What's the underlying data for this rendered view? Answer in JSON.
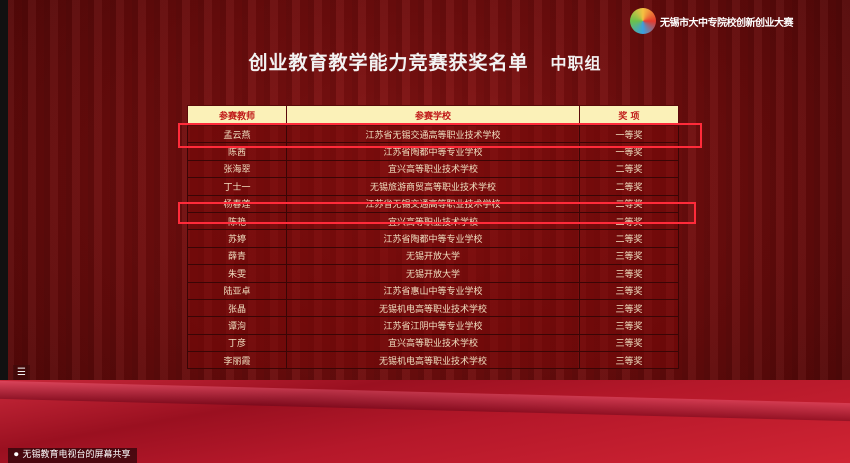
{
  "logo": {
    "text": "无锡市大中专院校创新创业大赛"
  },
  "title": {
    "main": "创业教育教学能力竞赛获奖名单",
    "group": "中职组"
  },
  "table": {
    "headers": [
      "参赛教师",
      "参赛学校",
      "奖 项"
    ],
    "rows": [
      [
        "孟云燕",
        "江苏省无锡交通高等职业技术学校",
        "一等奖"
      ],
      [
        "陈茜",
        "江苏省陶都中等专业学校",
        "一等奖"
      ],
      [
        "张海翠",
        "宜兴高等职业技术学校",
        "二等奖"
      ],
      [
        "丁士一",
        "无锡旅游商贸高等职业技术学校",
        "二等奖"
      ],
      [
        "杨春莲",
        "江苏省无锡交通高等职业技术学校",
        "二等奖"
      ],
      [
        "陈艳",
        "宜兴高等职业技术学校",
        "二等奖"
      ],
      [
        "苏婷",
        "江苏省陶都中等专业学校",
        "二等奖"
      ],
      [
        "薛青",
        "无锡开放大学",
        "三等奖"
      ],
      [
        "朱雯",
        "无锡开放大学",
        "三等奖"
      ],
      [
        "陆亚卓",
        "江苏省惠山中等专业学校",
        "三等奖"
      ],
      [
        "张晶",
        "无锡机电高等职业技术学校",
        "三等奖"
      ],
      [
        "谭洵",
        "江苏省江阴中等专业学校",
        "三等奖"
      ],
      [
        "丁彦",
        "宜兴高等职业技术学校",
        "三等奖"
      ],
      [
        "李丽霞",
        "无锡机电高等职业技术学校",
        "三等奖"
      ]
    ]
  },
  "colors": {
    "highlight": "#ff2b3a",
    "header_bg": "#fbf1b8",
    "header_text": "#c01818"
  },
  "menu": {
    "label": "☰"
  },
  "share": {
    "icon": "screen-share-icon",
    "text": "无锡教育电视台的屏幕共享"
  }
}
